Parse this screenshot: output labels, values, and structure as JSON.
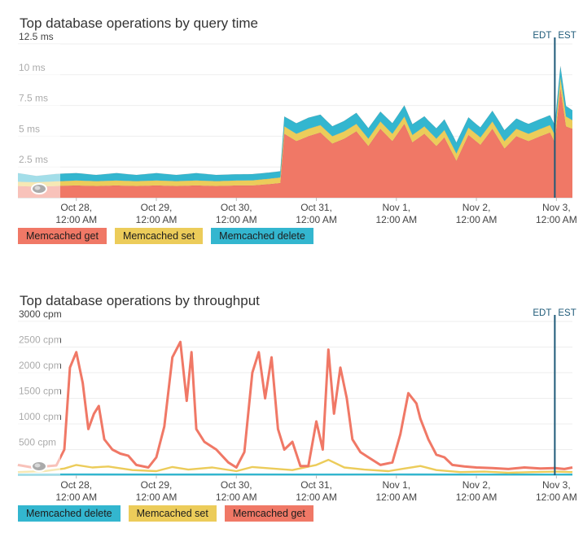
{
  "colors": {
    "get": "#f07866",
    "set": "#eccc5a",
    "delete": "#33b6cf",
    "tz_line": "#1e5a78",
    "grid": "#eeeeee",
    "axis_text": "#444444"
  },
  "x_ticks": [
    {
      "date": "Oct 28,",
      "time": "12:00 AM"
    },
    {
      "date": "Oct 29,",
      "time": "12:00 AM"
    },
    {
      "date": "Oct 30,",
      "time": "12:00 AM"
    },
    {
      "date": "Oct 31,",
      "time": "12:00 AM"
    },
    {
      "date": "Nov 1,",
      "time": "12:00 AM"
    },
    {
      "date": "Nov 2,",
      "time": "12:00 AM"
    },
    {
      "date": "Nov 3,",
      "time": "12:00 AM"
    }
  ],
  "tz_labels": {
    "left": "EDT",
    "right": "EST"
  },
  "chart_data": [
    {
      "type": "area",
      "stacked": true,
      "title": "Top database operations by query time",
      "y_ticks": [
        "12.5 ms",
        "10 ms",
        "7.5 ms",
        "5 ms",
        "2.5 ms"
      ],
      "ylim": [
        0,
        12.5
      ],
      "x_unit": "days since Oct 27, 12:00 AM",
      "xlim": [
        0.27,
        7.2
      ],
      "timezone_change_x": 6.98,
      "series": [
        {
          "name": "Memcached get",
          "key": "get",
          "points": [
            [
              0.27,
              0.95
            ],
            [
              0.5,
              0.9
            ],
            [
              0.75,
              0.95
            ],
            [
              1.0,
              1.0
            ],
            [
              1.25,
              0.95
            ],
            [
              1.5,
              1.0
            ],
            [
              1.75,
              0.95
            ],
            [
              2.0,
              1.0
            ],
            [
              2.25,
              0.95
            ],
            [
              2.5,
              1.0
            ],
            [
              2.75,
              0.95
            ],
            [
              3.0,
              1.0
            ],
            [
              3.2,
              1.0
            ],
            [
              3.4,
              1.1
            ],
            [
              3.55,
              1.2
            ],
            [
              3.6,
              5.2
            ],
            [
              3.75,
              4.6
            ],
            [
              3.9,
              5.0
            ],
            [
              4.05,
              5.3
            ],
            [
              4.2,
              4.4
            ],
            [
              4.35,
              4.8
            ],
            [
              4.5,
              5.4
            ],
            [
              4.65,
              4.2
            ],
            [
              4.8,
              5.6
            ],
            [
              4.95,
              4.6
            ],
            [
              5.1,
              6.0
            ],
            [
              5.2,
              4.5
            ],
            [
              5.35,
              5.2
            ],
            [
              5.5,
              4.2
            ],
            [
              5.6,
              4.9
            ],
            [
              5.75,
              3.0
            ],
            [
              5.9,
              5.1
            ],
            [
              6.05,
              4.3
            ],
            [
              6.2,
              5.6
            ],
            [
              6.35,
              4.0
            ],
            [
              6.5,
              5.0
            ],
            [
              6.65,
              4.6
            ],
            [
              6.8,
              5.0
            ],
            [
              6.92,
              5.3
            ],
            [
              6.98,
              4.5
            ],
            [
              7.05,
              8.9
            ],
            [
              7.12,
              5.8
            ],
            [
              7.2,
              5.6
            ]
          ]
        },
        {
          "name": "Memcached set",
          "key": "set",
          "points": [
            [
              0.27,
              0.35
            ],
            [
              1.0,
              0.4
            ],
            [
              2.0,
              0.4
            ],
            [
              3.0,
              0.4
            ],
            [
              3.55,
              0.45
            ],
            [
              3.6,
              0.6
            ],
            [
              4.5,
              0.6
            ],
            [
              5.5,
              0.6
            ],
            [
              6.5,
              0.6
            ],
            [
              6.98,
              0.6
            ],
            [
              7.05,
              0.9
            ],
            [
              7.2,
              0.7
            ]
          ]
        },
        {
          "name": "Memcached delete",
          "key": "delete",
          "points": [
            [
              0.27,
              0.7
            ],
            [
              0.5,
              0.5
            ],
            [
              0.75,
              0.6
            ],
            [
              1.0,
              0.6
            ],
            [
              1.25,
              0.5
            ],
            [
              1.5,
              0.6
            ],
            [
              1.75,
              0.5
            ],
            [
              2.0,
              0.6
            ],
            [
              2.25,
              0.5
            ],
            [
              2.5,
              0.6
            ],
            [
              2.75,
              0.5
            ],
            [
              3.0,
              0.5
            ],
            [
              3.55,
              0.5
            ],
            [
              3.6,
              0.8
            ],
            [
              3.9,
              0.9
            ],
            [
              4.2,
              0.8
            ],
            [
              4.5,
              0.9
            ],
            [
              4.8,
              0.8
            ],
            [
              5.1,
              0.9
            ],
            [
              5.4,
              0.8
            ],
            [
              5.7,
              0.9
            ],
            [
              6.0,
              0.8
            ],
            [
              6.3,
              0.9
            ],
            [
              6.6,
              0.8
            ],
            [
              6.98,
              0.8
            ],
            [
              7.05,
              0.9
            ],
            [
              7.2,
              0.8
            ]
          ]
        }
      ],
      "legend": [
        "Memcached get",
        "Memcached set",
        "Memcached delete"
      ]
    },
    {
      "type": "line",
      "title": "Top database operations by throughput",
      "y_ticks": [
        "3000 cpm",
        "2500 cpm",
        "2000 cpm",
        "1500 cpm",
        "1000 cpm",
        "500 cpm"
      ],
      "ylim": [
        0,
        3000
      ],
      "x_unit": "days since Oct 27, 12:00 AM",
      "xlim": [
        0.27,
        7.2
      ],
      "timezone_change_x": 6.98,
      "series": [
        {
          "name": "Memcached get",
          "key": "get",
          "points": [
            [
              0.27,
              200
            ],
            [
              0.45,
              150
            ],
            [
              0.6,
              170
            ],
            [
              0.75,
              190
            ],
            [
              0.85,
              500
            ],
            [
              0.92,
              2100
            ],
            [
              1.0,
              2400
            ],
            [
              1.08,
              1800
            ],
            [
              1.15,
              900
            ],
            [
              1.22,
              1200
            ],
            [
              1.28,
              1350
            ],
            [
              1.35,
              700
            ],
            [
              1.45,
              500
            ],
            [
              1.55,
              420
            ],
            [
              1.65,
              380
            ],
            [
              1.75,
              200
            ],
            [
              1.9,
              150
            ],
            [
              2.0,
              350
            ],
            [
              2.1,
              950
            ],
            [
              2.2,
              2300
            ],
            [
              2.3,
              2600
            ],
            [
              2.38,
              1450
            ],
            [
              2.44,
              2400
            ],
            [
              2.5,
              900
            ],
            [
              2.6,
              650
            ],
            [
              2.75,
              500
            ],
            [
              2.9,
              250
            ],
            [
              3.0,
              150
            ],
            [
              3.1,
              450
            ],
            [
              3.2,
              2000
            ],
            [
              3.28,
              2400
            ],
            [
              3.36,
              1500
            ],
            [
              3.44,
              2300
            ],
            [
              3.52,
              900
            ],
            [
              3.6,
              500
            ],
            [
              3.7,
              650
            ],
            [
              3.8,
              180
            ],
            [
              3.9,
              180
            ],
            [
              4.0,
              1050
            ],
            [
              4.08,
              500
            ],
            [
              4.15,
              2450
            ],
            [
              4.22,
              1200
            ],
            [
              4.3,
              2100
            ],
            [
              4.38,
              1500
            ],
            [
              4.45,
              700
            ],
            [
              4.55,
              450
            ],
            [
              4.65,
              350
            ],
            [
              4.8,
              200
            ],
            [
              4.95,
              250
            ],
            [
              5.05,
              800
            ],
            [
              5.15,
              1600
            ],
            [
              5.25,
              1400
            ],
            [
              5.3,
              1100
            ],
            [
              5.4,
              700
            ],
            [
              5.5,
              400
            ],
            [
              5.6,
              350
            ],
            [
              5.7,
              200
            ],
            [
              5.85,
              170
            ],
            [
              6.0,
              150
            ],
            [
              6.2,
              140
            ],
            [
              6.4,
              120
            ],
            [
              6.6,
              150
            ],
            [
              6.8,
              130
            ],
            [
              6.98,
              140
            ],
            [
              7.1,
              120
            ],
            [
              7.2,
              150
            ]
          ]
        },
        {
          "name": "Memcached set",
          "key": "set",
          "points": [
            [
              0.27,
              60
            ],
            [
              0.6,
              80
            ],
            [
              0.85,
              130
            ],
            [
              1.0,
              200
            ],
            [
              1.2,
              150
            ],
            [
              1.4,
              170
            ],
            [
              1.7,
              100
            ],
            [
              2.0,
              80
            ],
            [
              2.2,
              160
            ],
            [
              2.4,
              110
            ],
            [
              2.7,
              150
            ],
            [
              3.0,
              80
            ],
            [
              3.2,
              160
            ],
            [
              3.45,
              130
            ],
            [
              3.7,
              100
            ],
            [
              4.0,
              200
            ],
            [
              4.15,
              300
            ],
            [
              4.35,
              150
            ],
            [
              4.6,
              110
            ],
            [
              4.9,
              80
            ],
            [
              5.1,
              130
            ],
            [
              5.3,
              180
            ],
            [
              5.5,
              100
            ],
            [
              5.8,
              60
            ],
            [
              6.1,
              70
            ],
            [
              6.4,
              50
            ],
            [
              6.7,
              60
            ],
            [
              6.98,
              70
            ],
            [
              7.2,
              60
            ]
          ]
        },
        {
          "name": "Memcached delete",
          "key": "delete",
          "points": [
            [
              0.27,
              12
            ],
            [
              1.0,
              15
            ],
            [
              2.0,
              12
            ],
            [
              3.0,
              15
            ],
            [
              4.0,
              12
            ],
            [
              5.0,
              15
            ],
            [
              6.0,
              12
            ],
            [
              7.2,
              12
            ]
          ]
        }
      ],
      "legend": [
        "Memcached delete",
        "Memcached set",
        "Memcached get"
      ]
    }
  ]
}
